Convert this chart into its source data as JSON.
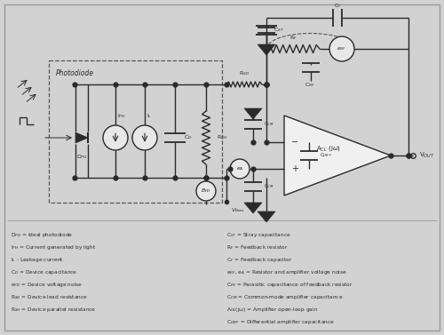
{
  "bg_color": "#d2d2d2",
  "line_color": "#2a2a2a",
  "legend_lines": [
    "D$_{PD}$ = Ideal photodiode",
    "I$_{PH}$ = Current generated by light",
    "I$_L$ - Leakage current",
    "C$_D$ = Device capacitance",
    "e$_{PD}$ = Device voltage noise",
    "R$_{SD}$ = Device lead resistance",
    "R$_{SH}$ = Device parallel resistance"
  ],
  "legend_lines2": [
    "C$_{ST}$ = Stray capacitance",
    "R$_F$ = Feedback resistor",
    "C$_F$ = Feedback capacitor",
    "e$_{RF}$, e$_A$ = Resistor and amplifier voltage noise",
    "C$_{RF}$ = Parasitic capacitance of feedback resistor",
    "C$_{CM}$ = Common-mode amplifier capacitance",
    "A$_{OL}$(jω) = Amplifier open-loop gain",
    "C$_{DIFF}$ = Differential amplifier capacitance"
  ]
}
